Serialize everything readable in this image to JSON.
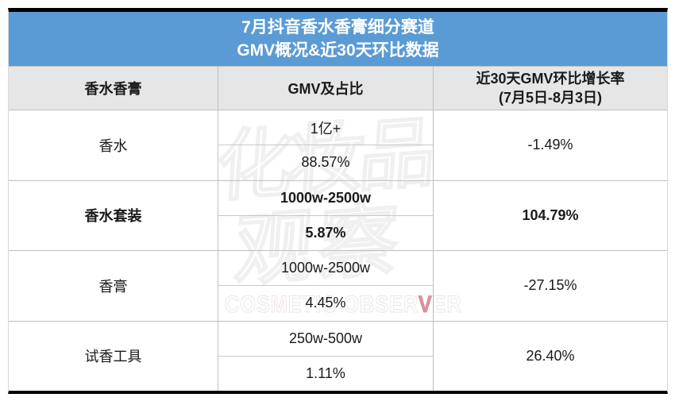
{
  "title": {
    "line1": "7月抖音香水香膏细分赛道",
    "line2": "GMV概况&近30天环比数据"
  },
  "columns": {
    "category": "香水香膏",
    "gmv": "GMV及占比",
    "growth_line1": "近30天GMV环比增长率",
    "growth_line2": "(7月5日-8月3日)"
  },
  "rows": [
    {
      "category": "香水",
      "gmv": "1亿+",
      "share": "88.57%",
      "growth": "-1.49%"
    },
    {
      "category": "香水套装",
      "gmv": "1000w-2500w",
      "share": "5.87%",
      "growth": "104.79%"
    },
    {
      "category": "香膏",
      "gmv": "1000w-2500w",
      "share": "4.45%",
      "growth": "-27.15%"
    },
    {
      "category": "试香工具",
      "gmv": "250w-500w",
      "share": "1.11%",
      "growth": "26.40%"
    }
  ],
  "watermark": {
    "cn_line1": "化妆品",
    "cn_line2": "观察",
    "en_left": "COSMETIC OBSER",
    "en_v": "V",
    "en_right": "ER"
  },
  "colors": {
    "title_blue": "#5B9BD5",
    "header_gray": "#E7E6E6",
    "grid_line": "#BFBFBF",
    "frame_black": "#000000",
    "watermark_pink": "#DC8FA0"
  }
}
